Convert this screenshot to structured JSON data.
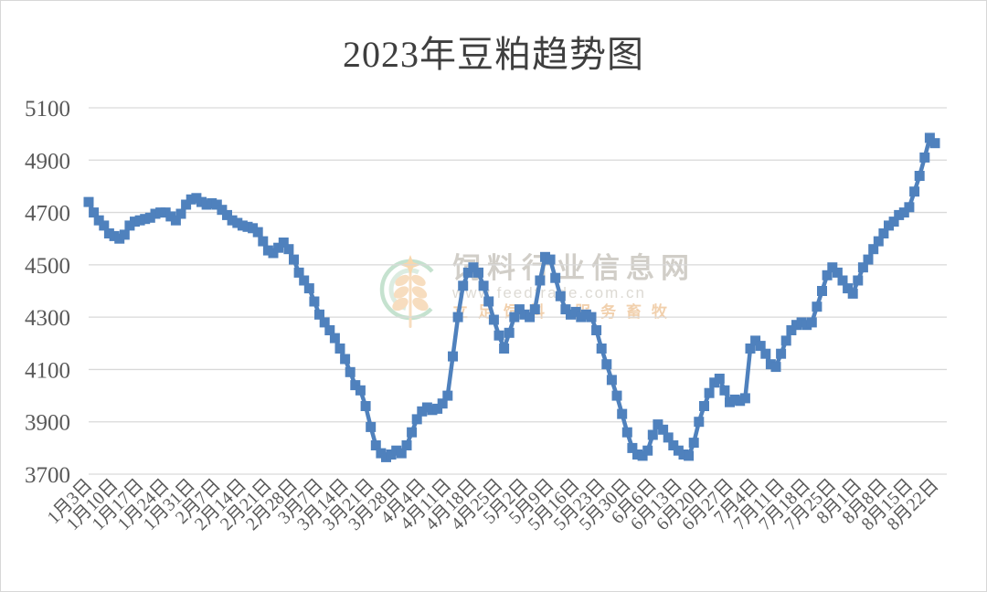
{
  "title": "2023年豆粕趋势图",
  "watermark": {
    "site_name": "饲料行业信息网",
    "site_url": "www.feedtrade.com.cn",
    "slogan_left": "立足饲料",
    "slogan_right": "服务畜牧",
    "logo": "green-rings-orange-wheat-logo"
  },
  "colors": {
    "series": "#4f81bd",
    "grid": "#d9d9d9",
    "axis_text": "#595959",
    "title_text": "#3f3f3f",
    "wm_green_outer": "#9fd0b0",
    "wm_green_inner": "#c5e1ce",
    "wm_orange": "#f2c795",
    "wm_star": "#f5bd77"
  },
  "chart_data": {
    "type": "line",
    "title": "2023年豆粕趋势图",
    "xlabel": "",
    "ylabel": "",
    "marker": "square",
    "legend": "none",
    "grid": true,
    "ylim": [
      3700,
      5100
    ],
    "y_ticks": [
      5100,
      4900,
      4700,
      4500,
      4300,
      4100,
      3900,
      3700
    ],
    "x_tick_labels": [
      "1月3日",
      "1月10日",
      "1月17日",
      "1月24日",
      "1月31日",
      "2月7日",
      "2月14日",
      "2月21日",
      "2月28日",
      "3月7日",
      "3月14日",
      "3月21日",
      "3月28日",
      "4月4日",
      "4月11日",
      "4月18日",
      "4月25日",
      "5月2日",
      "5月9日",
      "5月16日",
      "5月23日",
      "5月30日",
      "6月6日",
      "6月13日",
      "6月20日",
      "6月27日",
      "7月4日",
      "7月11日",
      "7月18日",
      "7月25日",
      "8月1日",
      "8月8日",
      "8月15日",
      "8月22日"
    ],
    "points_per_tick": 5,
    "x_frequency": "daily-weekdays",
    "values": [
      4740,
      4700,
      4670,
      4650,
      4620,
      4610,
      4600,
      4615,
      4650,
      4665,
      4670,
      4675,
      4680,
      4695,
      4700,
      4700,
      4685,
      4670,
      4695,
      4730,
      4750,
      4755,
      4740,
      4730,
      4735,
      4730,
      4710,
      4690,
      4670,
      4660,
      4650,
      4645,
      4640,
      4625,
      4590,
      4555,
      4545,
      4565,
      4585,
      4560,
      4520,
      4470,
      4440,
      4410,
      4360,
      4310,
      4280,
      4250,
      4220,
      4180,
      4140,
      4090,
      4040,
      4020,
      3960,
      3880,
      3810,
      3780,
      3765,
      3775,
      3790,
      3780,
      3810,
      3860,
      3910,
      3940,
      3955,
      3945,
      3950,
      3970,
      4000,
      4150,
      4300,
      4420,
      4470,
      4490,
      4470,
      4420,
      4360,
      4290,
      4230,
      4180,
      4240,
      4300,
      4330,
      4310,
      4300,
      4330,
      4440,
      4530,
      4520,
      4450,
      4380,
      4330,
      4310,
      4320,
      4300,
      4310,
      4300,
      4250,
      4180,
      4120,
      4060,
      4000,
      3930,
      3860,
      3800,
      3775,
      3770,
      3790,
      3850,
      3890,
      3870,
      3840,
      3810,
      3790,
      3775,
      3770,
      3820,
      3900,
      3960,
      4010,
      4050,
      4065,
      4020,
      3975,
      3985,
      3980,
      3990,
      4180,
      4210,
      4190,
      4160,
      4120,
      4110,
      4160,
      4210,
      4250,
      4270,
      4280,
      4270,
      4280,
      4340,
      4400,
      4460,
      4490,
      4470,
      4440,
      4410,
      4390,
      4440,
      4490,
      4520,
      4560,
      4590,
      4620,
      4650,
      4665,
      4690,
      4700,
      4720,
      4780,
      4840,
      4910,
      4985,
      4965
    ]
  }
}
